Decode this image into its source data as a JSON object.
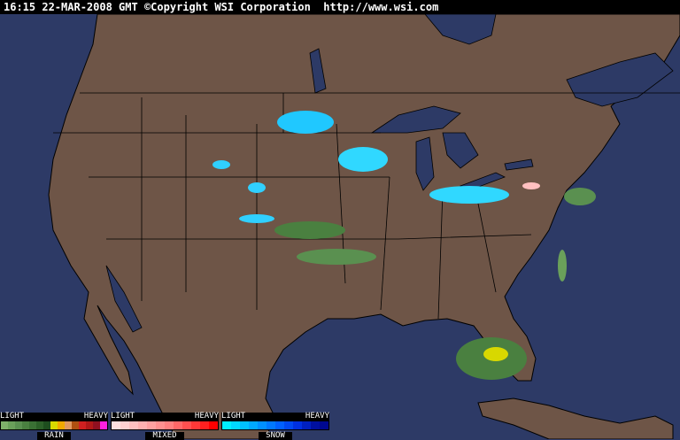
{
  "header": {
    "timestamp": "16:15 22-MAR-2008 GMT",
    "copyright": "©Copyright WSI Corporation",
    "url": "http://www.wsi.com"
  },
  "colors": {
    "ocean": "#2d3a66",
    "land": "#6e5547",
    "borders": "#000000"
  },
  "legend": [
    {
      "name": "RAIN",
      "light": "LIGHT",
      "heavy": "HEAVY",
      "colors": [
        "#7fb06a",
        "#6aa05a",
        "#5a9050",
        "#4a8040",
        "#3a7034",
        "#2c6028",
        "#1e4e1e",
        "#d8d800",
        "#f0a800",
        "#e09860",
        "#b05010",
        "#d02020",
        "#b01818",
        "#901020",
        "#ff20e0"
      ]
    },
    {
      "name": "MIXED",
      "light": "LIGHT",
      "heavy": "HEAVY",
      "colors": [
        "#ffe0e0",
        "#ffd0d0",
        "#ffc0c0",
        "#ffb0b0",
        "#ffa0a0",
        "#ff9090",
        "#ff8080",
        "#ff6868",
        "#ff5050",
        "#ff3838",
        "#ff2020",
        "#ff0000"
      ]
    },
    {
      "name": "SNOW",
      "light": "LIGHT",
      "heavy": "HEAVY",
      "colors": [
        "#00f0ff",
        "#00d8ff",
        "#00c0ff",
        "#00a8ff",
        "#0090ff",
        "#0078ff",
        "#0060ff",
        "#0048f0",
        "#0030e0",
        "#0020c0",
        "#0010a0",
        "#000890"
      ]
    }
  ]
}
